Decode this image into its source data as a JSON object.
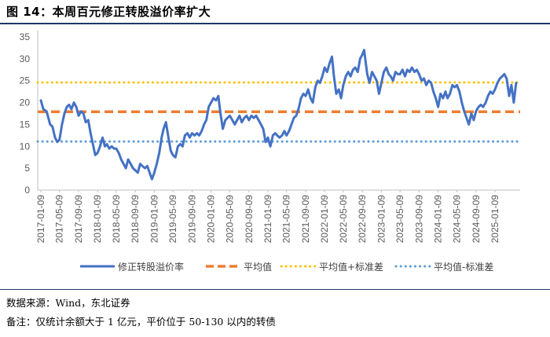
{
  "figure": {
    "title": "图 14：本周百元修正转股溢价率扩大",
    "source": "数据来源：Wind，东北证券",
    "remark": "备注：仅统计余额大于 1 亿元，平价位于 50-130 以内的转债"
  },
  "colors": {
    "series": "#4472c4",
    "mean": "#ed7d31",
    "plus_std": "#ffc000",
    "minus_std": "#5b9bd5",
    "rule": "#1f3864"
  },
  "chart_data": {
    "type": "line",
    "title": "",
    "xlabel": "",
    "ylabel": "",
    "ylim": [
      0,
      35
    ],
    "yticks": [
      0,
      5,
      10,
      15,
      20,
      25,
      30,
      35
    ],
    "xlim": [
      "2016-12-20",
      "2025-06-20"
    ],
    "xticks": [
      "2017-01-09",
      "2017-05-09",
      "2017-09-09",
      "2018-01-09",
      "2018-05-09",
      "2018-09-09",
      "2019-01-09",
      "2019-05-09",
      "2019-09-09",
      "2020-01-09",
      "2020-05-09",
      "2020-09-09",
      "2021-01-09",
      "2021-05-09",
      "2021-09-09",
      "2022-01-09",
      "2022-05-09",
      "2022-09-09",
      "2023-01-09",
      "2023-05-09",
      "2023-09-09",
      "2024-01-09",
      "2024-05-09",
      "2024-09-09",
      "2025-01-09"
    ],
    "grid": false,
    "legend_position": "bottom",
    "series": [
      {
        "name": "修正转股溢价率",
        "style": "solid",
        "points": [
          [
            "2017-01-09",
            20.5
          ],
          [
            "2017-01-25",
            18.5
          ],
          [
            "2017-02-15",
            18.0
          ],
          [
            "2017-03-10",
            15.0
          ],
          [
            "2017-03-25",
            14.5
          ],
          [
            "2017-04-10",
            12.0
          ],
          [
            "2017-04-25",
            11.0
          ],
          [
            "2017-05-09",
            11.5
          ],
          [
            "2017-05-25",
            15.0
          ],
          [
            "2017-06-10",
            17.5
          ],
          [
            "2017-06-25",
            19.0
          ],
          [
            "2017-07-10",
            19.5
          ],
          [
            "2017-07-25",
            18.5
          ],
          [
            "2017-08-10",
            20.0
          ],
          [
            "2017-08-25",
            19.0
          ],
          [
            "2017-09-09",
            17.0
          ],
          [
            "2017-09-25",
            18.0
          ],
          [
            "2017-10-10",
            17.5
          ],
          [
            "2017-10-25",
            15.5
          ],
          [
            "2017-11-10",
            16.0
          ],
          [
            "2017-11-25",
            13.0
          ],
          [
            "2017-12-10",
            10.5
          ],
          [
            "2017-12-25",
            8.0
          ],
          [
            "2018-01-09",
            8.5
          ],
          [
            "2018-01-25",
            10.0
          ],
          [
            "2018-02-10",
            12.0
          ],
          [
            "2018-02-25",
            10.0
          ],
          [
            "2018-03-10",
            10.5
          ],
          [
            "2018-03-25",
            9.5
          ],
          [
            "2018-04-10",
            10.0
          ],
          [
            "2018-04-25",
            9.5
          ],
          [
            "2018-05-09",
            9.5
          ],
          [
            "2018-05-25",
            8.5
          ],
          [
            "2018-06-10",
            7.0
          ],
          [
            "2018-06-25",
            6.0
          ],
          [
            "2018-07-10",
            5.0
          ],
          [
            "2018-07-25",
            7.0
          ],
          [
            "2018-08-10",
            6.0
          ],
          [
            "2018-08-25",
            5.0
          ],
          [
            "2018-09-09",
            4.5
          ],
          [
            "2018-09-25",
            4.0
          ],
          [
            "2018-10-10",
            6.0
          ],
          [
            "2018-10-25",
            5.5
          ],
          [
            "2018-11-10",
            5.0
          ],
          [
            "2018-11-25",
            5.5
          ],
          [
            "2018-12-10",
            4.0
          ],
          [
            "2018-12-25",
            2.5
          ],
          [
            "2019-01-09",
            4.0
          ],
          [
            "2019-01-25",
            6.0
          ],
          [
            "2019-02-10",
            8.5
          ],
          [
            "2019-02-25",
            12.0
          ],
          [
            "2019-03-10",
            14.0
          ],
          [
            "2019-03-25",
            15.5
          ],
          [
            "2019-04-10",
            12.0
          ],
          [
            "2019-04-25",
            9.0
          ],
          [
            "2019-05-09",
            8.0
          ],
          [
            "2019-05-25",
            7.5
          ],
          [
            "2019-06-10",
            10.0
          ],
          [
            "2019-06-25",
            10.5
          ],
          [
            "2019-07-10",
            10.0
          ],
          [
            "2019-07-25",
            12.5
          ],
          [
            "2019-08-10",
            13.0
          ],
          [
            "2019-08-25",
            12.0
          ],
          [
            "2019-09-09",
            13.0
          ],
          [
            "2019-09-25",
            12.5
          ],
          [
            "2019-10-10",
            13.0
          ],
          [
            "2019-10-25",
            12.5
          ],
          [
            "2019-11-10",
            13.5
          ],
          [
            "2019-11-25",
            15.0
          ],
          [
            "2019-12-10",
            16.0
          ],
          [
            "2019-12-25",
            19.0
          ],
          [
            "2020-01-09",
            20.0
          ],
          [
            "2020-01-25",
            21.0
          ],
          [
            "2020-02-10",
            20.5
          ],
          [
            "2020-02-25",
            21.5
          ],
          [
            "2020-03-10",
            17.5
          ],
          [
            "2020-03-25",
            14.0
          ],
          [
            "2020-04-10",
            16.0
          ],
          [
            "2020-04-25",
            16.5
          ],
          [
            "2020-05-09",
            17.0
          ],
          [
            "2020-05-25",
            16.0
          ],
          [
            "2020-06-10",
            15.0
          ],
          [
            "2020-06-25",
            16.0
          ],
          [
            "2020-07-10",
            17.0
          ],
          [
            "2020-07-25",
            15.5
          ],
          [
            "2020-08-10",
            16.5
          ],
          [
            "2020-08-25",
            17.0
          ],
          [
            "2020-09-09",
            16.0
          ],
          [
            "2020-09-25",
            17.0
          ],
          [
            "2020-10-10",
            16.5
          ],
          [
            "2020-10-25",
            17.0
          ],
          [
            "2020-11-10",
            16.0
          ],
          [
            "2020-11-25",
            15.0
          ],
          [
            "2020-12-10",
            14.0
          ],
          [
            "2020-12-25",
            11.0
          ],
          [
            "2021-01-09",
            12.0
          ],
          [
            "2021-01-25",
            10.0
          ],
          [
            "2021-02-10",
            12.5
          ],
          [
            "2021-02-25",
            13.0
          ],
          [
            "2021-03-10",
            12.5
          ],
          [
            "2021-03-25",
            12.0
          ],
          [
            "2021-04-10",
            12.5
          ],
          [
            "2021-04-25",
            13.5
          ],
          [
            "2021-05-09",
            12.5
          ],
          [
            "2021-05-25",
            13.5
          ],
          [
            "2021-06-10",
            15.0
          ],
          [
            "2021-06-25",
            16.5
          ],
          [
            "2021-07-10",
            17.0
          ],
          [
            "2021-07-25",
            18.5
          ],
          [
            "2021-08-10",
            21.0
          ],
          [
            "2021-08-25",
            22.0
          ],
          [
            "2021-09-09",
            21.5
          ],
          [
            "2021-09-25",
            23.0
          ],
          [
            "2021-10-10",
            21.0
          ],
          [
            "2021-10-25",
            20.0
          ],
          [
            "2021-11-10",
            23.5
          ],
          [
            "2021-11-25",
            25.0
          ],
          [
            "2021-12-10",
            24.5
          ],
          [
            "2021-12-25",
            26.0
          ],
          [
            "2022-01-09",
            28.0
          ],
          [
            "2022-01-25",
            27.0
          ],
          [
            "2022-02-10",
            29.0
          ],
          [
            "2022-02-25",
            30.5
          ],
          [
            "2022-03-10",
            26.0
          ],
          [
            "2022-03-25",
            22.0
          ],
          [
            "2022-04-10",
            23.0
          ],
          [
            "2022-04-25",
            21.0
          ],
          [
            "2022-05-09",
            24.0
          ],
          [
            "2022-05-25",
            26.0
          ],
          [
            "2022-06-10",
            27.0
          ],
          [
            "2022-06-25",
            26.0
          ],
          [
            "2022-07-10",
            27.5
          ],
          [
            "2022-07-25",
            28.0
          ],
          [
            "2022-08-10",
            27.0
          ],
          [
            "2022-08-25",
            30.0
          ],
          [
            "2022-09-09",
            31.0
          ],
          [
            "2022-09-20",
            32.0
          ],
          [
            "2022-10-10",
            26.5
          ],
          [
            "2022-10-25",
            24.5
          ],
          [
            "2022-11-10",
            27.0
          ],
          [
            "2022-11-25",
            26.0
          ],
          [
            "2022-12-10",
            25.0
          ],
          [
            "2022-12-25",
            22.0
          ],
          [
            "2023-01-09",
            24.5
          ],
          [
            "2023-01-25",
            27.0
          ],
          [
            "2023-02-10",
            28.0
          ],
          [
            "2023-02-25",
            26.5
          ],
          [
            "2023-03-10",
            26.0
          ],
          [
            "2023-03-25",
            25.0
          ],
          [
            "2023-04-10",
            27.0
          ],
          [
            "2023-04-25",
            26.5
          ],
          [
            "2023-05-09",
            26.5
          ],
          [
            "2023-05-25",
            27.5
          ],
          [
            "2023-06-10",
            26.0
          ],
          [
            "2023-06-25",
            27.5
          ],
          [
            "2023-07-10",
            27.0
          ],
          [
            "2023-07-25",
            28.0
          ],
          [
            "2023-08-10",
            27.0
          ],
          [
            "2023-08-25",
            27.5
          ],
          [
            "2023-09-09",
            26.5
          ],
          [
            "2023-09-25",
            25.0
          ],
          [
            "2023-10-10",
            25.5
          ],
          [
            "2023-10-25",
            24.0
          ],
          [
            "2023-11-10",
            25.0
          ],
          [
            "2023-11-25",
            24.5
          ],
          [
            "2023-12-10",
            22.5
          ],
          [
            "2023-12-25",
            21.0
          ],
          [
            "2024-01-09",
            19.0
          ],
          [
            "2024-01-25",
            22.0
          ],
          [
            "2024-02-10",
            21.0
          ],
          [
            "2024-02-25",
            22.5
          ],
          [
            "2024-03-10",
            21.0
          ],
          [
            "2024-03-25",
            22.0
          ],
          [
            "2024-04-10",
            24.0
          ],
          [
            "2024-04-25",
            23.5
          ],
          [
            "2024-05-09",
            24.0
          ],
          [
            "2024-05-25",
            22.5
          ],
          [
            "2024-06-10",
            20.0
          ],
          [
            "2024-06-25",
            18.0
          ],
          [
            "2024-07-10",
            16.5
          ],
          [
            "2024-07-25",
            15.0
          ],
          [
            "2024-08-10",
            17.5
          ],
          [
            "2024-08-25",
            16.0
          ],
          [
            "2024-09-09",
            18.0
          ],
          [
            "2024-09-25",
            19.0
          ],
          [
            "2024-10-10",
            19.5
          ],
          [
            "2024-10-25",
            19.0
          ],
          [
            "2024-11-10",
            20.0
          ],
          [
            "2024-11-25",
            21.5
          ],
          [
            "2024-12-10",
            22.5
          ],
          [
            "2024-12-25",
            22.0
          ],
          [
            "2025-01-09",
            23.0
          ],
          [
            "2025-01-25",
            24.5
          ],
          [
            "2025-02-10",
            25.5
          ],
          [
            "2025-02-25",
            26.0
          ],
          [
            "2025-03-10",
            26.5
          ],
          [
            "2025-03-25",
            25.5
          ],
          [
            "2025-04-10",
            21.5
          ],
          [
            "2025-04-25",
            24.0
          ],
          [
            "2025-05-10",
            20.0
          ],
          [
            "2025-05-25",
            24.5
          ]
        ]
      },
      {
        "name": "平均值",
        "style": "dashed",
        "value": 17.9
      },
      {
        "name": "平均值+标准差",
        "style": "dotted",
        "value": 24.6
      },
      {
        "name": "平均值-标准差",
        "style": "dotted",
        "value": 11.1
      }
    ]
  }
}
